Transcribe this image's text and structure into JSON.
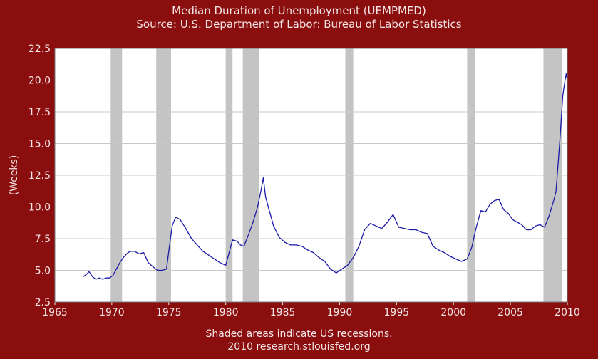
{
  "title": "Median Duration of Unemployment (UEMPMED)",
  "subtitle": "Source: U.S. Department of Labor: Bureau of Labor Statistics",
  "footnote_1": "Shaded areas indicate US recessions.",
  "footnote_2": "2010 research.stlouisfed.org",
  "colors": {
    "background": "#8b0e0e",
    "plot_bg": "#ffffff",
    "recession": "#c4c4c4",
    "grid": "#c8c8c8",
    "line": "#1a1aa8",
    "text": "#f3e6e6"
  },
  "chart_data": {
    "type": "line",
    "ylabel": "(Weeks)",
    "xlim": [
      1965,
      2010
    ],
    "ylim": [
      2.5,
      22.5
    ],
    "x_ticks": [
      "1965",
      "1970",
      "1975",
      "1980",
      "1985",
      "1990",
      "1995",
      "2000",
      "2005",
      "2010"
    ],
    "y_ticks": [
      "2.5",
      "5.0",
      "7.5",
      "10.0",
      "12.5",
      "15.0",
      "17.5",
      "20.0",
      "22.5"
    ],
    "grid": "horizontal",
    "recessions": [
      [
        1969.9,
        1970.9
      ],
      [
        1973.9,
        1975.2
      ],
      [
        1980.0,
        1980.6
      ],
      [
        1981.5,
        1982.9
      ],
      [
        1990.5,
        1991.2
      ],
      [
        2001.2,
        2001.9
      ],
      [
        2007.9,
        2009.5
      ]
    ],
    "series": [
      {
        "points": [
          [
            1967.5,
            4.5
          ],
          [
            1967.8,
            4.7
          ],
          [
            1968.0,
            4.9
          ],
          [
            1968.3,
            4.5
          ],
          [
            1968.6,
            4.3
          ],
          [
            1968.9,
            4.4
          ],
          [
            1969.2,
            4.3
          ],
          [
            1969.5,
            4.4
          ],
          [
            1969.8,
            4.4
          ],
          [
            1970.1,
            4.6
          ],
          [
            1970.4,
            5.1
          ],
          [
            1970.7,
            5.6
          ],
          [
            1971.0,
            6.0
          ],
          [
            1971.3,
            6.3
          ],
          [
            1971.6,
            6.5
          ],
          [
            1972.0,
            6.5
          ],
          [
            1972.4,
            6.3
          ],
          [
            1972.8,
            6.4
          ],
          [
            1973.2,
            5.6
          ],
          [
            1973.6,
            5.3
          ],
          [
            1974.0,
            5.0
          ],
          [
            1974.4,
            5.0
          ],
          [
            1974.8,
            5.1
          ],
          [
            1975.0,
            6.5
          ],
          [
            1975.3,
            8.5
          ],
          [
            1975.6,
            9.2
          ],
          [
            1976.0,
            9.0
          ],
          [
            1976.5,
            8.3
          ],
          [
            1977.0,
            7.5
          ],
          [
            1977.5,
            7.0
          ],
          [
            1978.0,
            6.5
          ],
          [
            1978.5,
            6.2
          ],
          [
            1979.0,
            5.9
          ],
          [
            1979.5,
            5.6
          ],
          [
            1980.0,
            5.4
          ],
          [
            1980.3,
            6.4
          ],
          [
            1980.6,
            7.4
          ],
          [
            1981.0,
            7.3
          ],
          [
            1981.3,
            7.0
          ],
          [
            1981.6,
            6.9
          ],
          [
            1982.0,
            7.8
          ],
          [
            1982.4,
            8.8
          ],
          [
            1982.8,
            10.0
          ],
          [
            1983.1,
            11.3
          ],
          [
            1983.3,
            12.3
          ],
          [
            1983.5,
            10.8
          ],
          [
            1983.8,
            9.8
          ],
          [
            1984.2,
            8.5
          ],
          [
            1984.7,
            7.6
          ],
          [
            1985.2,
            7.2
          ],
          [
            1985.7,
            7.0
          ],
          [
            1986.2,
            7.0
          ],
          [
            1986.7,
            6.9
          ],
          [
            1987.2,
            6.6
          ],
          [
            1987.7,
            6.4
          ],
          [
            1988.2,
            6.0
          ],
          [
            1988.7,
            5.7
          ],
          [
            1989.2,
            5.1
          ],
          [
            1989.7,
            4.8
          ],
          [
            1990.2,
            5.1
          ],
          [
            1990.7,
            5.4
          ],
          [
            1991.2,
            6.0
          ],
          [
            1991.7,
            6.9
          ],
          [
            1992.2,
            8.2
          ],
          [
            1992.7,
            8.7
          ],
          [
            1993.2,
            8.5
          ],
          [
            1993.7,
            8.3
          ],
          [
            1994.2,
            8.8
          ],
          [
            1994.7,
            9.4
          ],
          [
            1995.2,
            8.4
          ],
          [
            1995.7,
            8.3
          ],
          [
            1996.2,
            8.2
          ],
          [
            1996.7,
            8.2
          ],
          [
            1997.2,
            8.0
          ],
          [
            1997.7,
            7.9
          ],
          [
            1998.2,
            6.9
          ],
          [
            1998.7,
            6.6
          ],
          [
            1999.2,
            6.4
          ],
          [
            1999.7,
            6.1
          ],
          [
            2000.2,
            5.9
          ],
          [
            2000.7,
            5.7
          ],
          [
            2001.2,
            5.9
          ],
          [
            2001.6,
            6.8
          ],
          [
            2002.0,
            8.4
          ],
          [
            2002.4,
            9.7
          ],
          [
            2002.8,
            9.6
          ],
          [
            2003.2,
            10.2
          ],
          [
            2003.6,
            10.5
          ],
          [
            2004.0,
            10.6
          ],
          [
            2004.4,
            9.8
          ],
          [
            2004.8,
            9.5
          ],
          [
            2005.2,
            9.0
          ],
          [
            2005.6,
            8.8
          ],
          [
            2006.0,
            8.6
          ],
          [
            2006.4,
            8.2
          ],
          [
            2006.8,
            8.2
          ],
          [
            2007.2,
            8.5
          ],
          [
            2007.6,
            8.6
          ],
          [
            2008.0,
            8.4
          ],
          [
            2008.4,
            9.3
          ],
          [
            2008.8,
            10.5
          ],
          [
            2009.0,
            11.2
          ],
          [
            2009.2,
            13.5
          ],
          [
            2009.4,
            16.0
          ],
          [
            2009.6,
            18.8
          ],
          [
            2009.8,
            20.0
          ],
          [
            2009.9,
            20.5
          ],
          [
            2010.0,
            20.0
          ]
        ]
      }
    ]
  }
}
